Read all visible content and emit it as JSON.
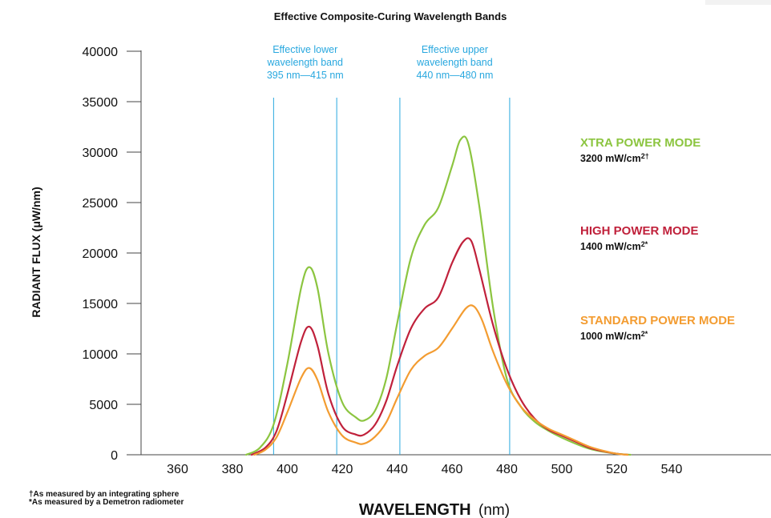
{
  "chart_data": {
    "type": "line",
    "title": "Effective Composite-Curing Wavelength Bands",
    "xlabel_bold": "WAVELENGTH",
    "xlabel_unit": "(nm)",
    "ylabel": "RADIANT FLUX (μW/nm)",
    "xlim": [
      340,
      600
    ],
    "ylim": [
      0,
      40000
    ],
    "xticks": [
      360,
      380,
      400,
      420,
      440,
      460,
      480,
      500,
      520,
      540
    ],
    "yticks": [
      0,
      5000,
      10000,
      15000,
      20000,
      25000,
      30000,
      35000,
      40000
    ],
    "grid": false,
    "band_lines": [
      395,
      418,
      441,
      481
    ],
    "bands": [
      {
        "lines": [
          "Effective lower",
          "wavelength band",
          "395 nm—415 nm"
        ],
        "center": 406.5
      },
      {
        "lines": [
          "Effective upper",
          "wavelength band",
          "440 nm—480 nm"
        ],
        "center": 461
      }
    ],
    "series": [
      {
        "name": "XTRA POWER MODE",
        "power": "3200 mW/cm",
        "power_sup": "2†",
        "color": "#8cc540",
        "x": [
          385,
          390,
          395,
          400,
          405,
          408,
          411,
          415,
          420,
          425,
          428,
          432,
          436,
          440,
          445,
          450,
          455,
          460,
          463,
          466,
          470,
          475,
          480,
          485,
          490,
          495,
          500,
          505,
          510,
          515,
          520,
          525
        ],
        "y": [
          0,
          700,
          3000,
          9000,
          16500,
          18600,
          16500,
          10000,
          5200,
          3700,
          3400,
          4400,
          7500,
          13000,
          19500,
          22800,
          24500,
          28600,
          31200,
          30800,
          24500,
          14500,
          7500,
          4800,
          3300,
          2400,
          1700,
          1100,
          600,
          300,
          100,
          0
        ]
      },
      {
        "name": "HIGH POWER MODE",
        "power": "1400 mW/cm",
        "power_sup": "2*",
        "color": "#c0213b",
        "x": [
          387,
          392,
          396,
          400,
          405,
          408,
          411,
          415,
          420,
          425,
          428,
          432,
          436,
          440,
          445,
          450,
          455,
          460,
          464,
          467,
          470,
          475,
          480,
          485,
          490,
          495,
          500,
          505,
          510,
          515,
          520,
          524
        ],
        "y": [
          0,
          700,
          2300,
          6000,
          11200,
          12700,
          10800,
          6000,
          2800,
          2000,
          2000,
          3000,
          5300,
          8800,
          12500,
          14500,
          15600,
          19000,
          21100,
          21200,
          18300,
          12800,
          8500,
          5500,
          3600,
          2500,
          1900,
          1300,
          700,
          350,
          100,
          0
        ]
      },
      {
        "name": "STANDARD POWER MODE",
        "power": "1000 mW/cm",
        "power_sup": "2*",
        "color": "#f39c31",
        "x": [
          388,
          392,
          396,
          400,
          405,
          408,
          411,
          415,
          420,
          425,
          428,
          432,
          436,
          440,
          445,
          450,
          455,
          460,
          465,
          468,
          471,
          475,
          480,
          485,
          490,
          495,
          500,
          505,
          510,
          515,
          520,
          524
        ],
        "y": [
          0,
          500,
          1700,
          4200,
          7600,
          8600,
          7400,
          4200,
          1900,
          1200,
          1100,
          1800,
          3200,
          5600,
          8400,
          9800,
          10600,
          12500,
          14500,
          14700,
          13300,
          10200,
          7000,
          4800,
          3500,
          2600,
          2000,
          1400,
          800,
          400,
          100,
          0
        ]
      }
    ]
  },
  "footnotes": [
    "†As measured by an integrating sphere",
    "*As measured by a Demetron radiometer"
  ]
}
